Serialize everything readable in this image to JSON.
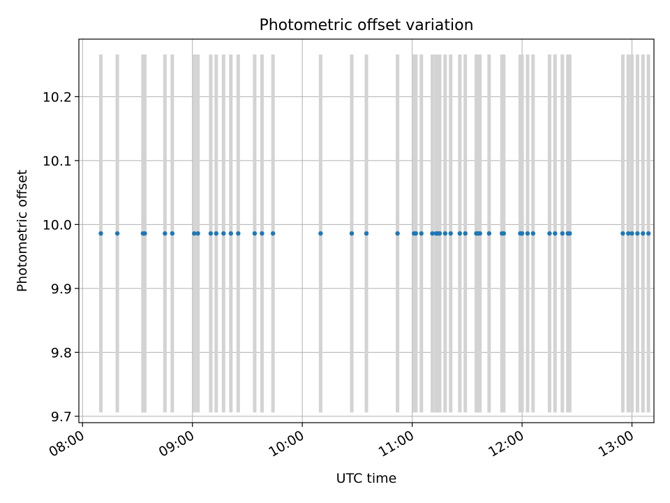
{
  "chart_data": {
    "type": "scatter",
    "title": "Photometric offset variation",
    "xlabel": "UTC time",
    "ylabel": "Photometric offset",
    "x_ticks": [
      "08:00",
      "09:00",
      "10:00",
      "11:00",
      "12:00",
      "13:00"
    ],
    "y_ticks": [
      "9.7",
      "9.8",
      "9.9",
      "10.0",
      "10.1",
      "10.2"
    ],
    "xlim": [
      "07:58",
      "13:12"
    ],
    "ylim": [
      9.69,
      10.29
    ],
    "grid": true,
    "series": [
      {
        "y_value": 9.986,
        "error_low": 9.706,
        "error_high": 10.266,
        "x": [
          "08:10",
          "08:19",
          "08:33",
          "08:34",
          "08:45",
          "08:49",
          "09:01",
          "09:03",
          "09:10",
          "09:13",
          "09:17",
          "09:21",
          "09:25",
          "09:34",
          "09:38",
          "09:44",
          "10:10",
          "10:27",
          "10:35",
          "10:52",
          "11:01",
          "11:02",
          "11:05",
          "11:11",
          "11:13",
          "11:14",
          "11:15",
          "11:18",
          "11:21",
          "11:26",
          "11:29",
          "11:35",
          "11:36",
          "11:37",
          "11:42",
          "11:49",
          "11:50",
          "11:59",
          "12:00",
          "12:03",
          "12:06",
          "12:15",
          "12:18",
          "12:22",
          "12:25",
          "12:26",
          "12:55",
          "12:58",
          "13:00",
          "13:03",
          "13:06",
          "13:09"
        ]
      }
    ],
    "colors": {
      "points": "#1f77b4",
      "error_bars": "#d3d3d3",
      "grid": "#b0b0b0",
      "axes": "#000000"
    }
  }
}
